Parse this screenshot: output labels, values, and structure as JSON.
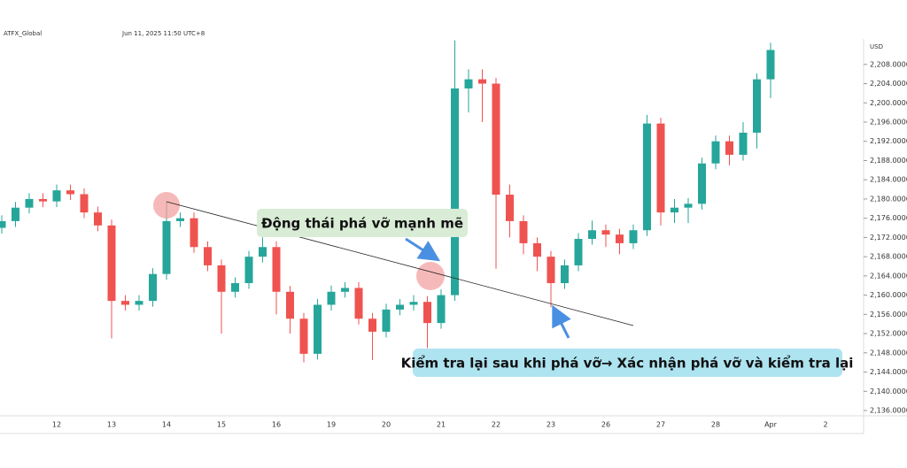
{
  "header": {
    "symbol": "ATFX_Global",
    "timestamp": "Jun 11, 2025 11:50 UTC+8",
    "currency": "USD"
  },
  "annotations": {
    "breakout": "Động thái phá vỡ mạnh mẽ",
    "retest": "Kiểm tra lại sau khi phá vỡ→ Xác nhận phá vỡ và kiểm tra lại"
  },
  "chart_data": {
    "type": "candlestick",
    "categories": [
      null,
      null,
      null,
      null,
      "12",
      null,
      null,
      null,
      "13",
      null,
      null,
      null,
      "14",
      null,
      null,
      null,
      "15",
      null,
      null,
      null,
      "16",
      null,
      null,
      null,
      "19",
      null,
      null,
      null,
      "20",
      null,
      null,
      null,
      "21",
      null,
      null,
      null,
      "22",
      null,
      null,
      null,
      "23",
      null,
      null,
      null,
      "26",
      null,
      null,
      null,
      "27",
      null,
      null,
      null,
      "28",
      null,
      null,
      null,
      "Apr",
      null,
      null,
      null,
      "2"
    ],
    "open": [
      2174.0,
      2175.4,
      2178.2,
      2180.0,
      2179.5,
      2181.8,
      2181.0,
      2177.2,
      2174.5,
      2158.8,
      2158.0,
      2158.8,
      2164.4,
      2175.4,
      2176.0,
      2170.0,
      2166.2,
      2160.7,
      2162.5,
      2168.0,
      2170.0,
      2160.7,
      2155.1,
      2147.8,
      2158.0,
      2160.7,
      2161.5,
      2155.1,
      2152.4,
      2157.0,
      2158.0,
      2158.6,
      2154.2,
      2160.0,
      2203.0,
      2204.9,
      2204.0,
      2180.9,
      2175.4,
      2170.8,
      2168.0,
      2162.5,
      2166.2,
      2171.7,
      2173.5,
      2172.6,
      2170.8,
      2173.5,
      2195.7,
      2177.2,
      2178.2,
      2179.0,
      2187.4,
      2192.0,
      2189.2,
      2193.8,
      2204.9,
      null,
      null,
      null,
      null
    ],
    "high": [
      2176.6,
      2179.4,
      2181.2,
      2181.2,
      2183.0,
      2183.0,
      2182.2,
      2178.4,
      2175.7,
      2160.0,
      2160.0,
      2165.6,
      2179.5,
      2177.2,
      2177.2,
      2171.2,
      2167.4,
      2163.7,
      2169.2,
      2172.0,
      2171.2,
      2161.9,
      2156.3,
      2159.2,
      2162.0,
      2162.7,
      2162.7,
      2156.3,
      2158.2,
      2159.2,
      2160.0,
      2159.8,
      2161.2,
      2213.0,
      2207.0,
      2207.0,
      2205.2,
      2183.0,
      2176.6,
      2172.0,
      2169.2,
      2167.4,
      2172.9,
      2175.5,
      2174.7,
      2173.8,
      2174.7,
      2197.5,
      2196.9,
      2180.0,
      2180.2,
      2188.6,
      2193.2,
      2193.2,
      2196.0,
      2206.1,
      2212.5,
      null,
      null,
      null,
      null
    ],
    "low": [
      2172.8,
      2174.2,
      2177.0,
      2178.3,
      2178.3,
      2179.8,
      2176.0,
      2173.3,
      2151.0,
      2156.8,
      2156.8,
      2157.6,
      2163.2,
      2174.2,
      2168.8,
      2165.0,
      2152.0,
      2159.5,
      2161.3,
      2166.8,
      2156.0,
      2152.0,
      2146.0,
      2146.6,
      2156.8,
      2159.5,
      2153.9,
      2146.5,
      2151.2,
      2155.8,
      2156.8,
      2149.0,
      2153.0,
      2158.8,
      2198.0,
      2196.0,
      2165.5,
      2172.0,
      2168.5,
      2165.0,
      2157.5,
      2161.3,
      2165.0,
      2170.5,
      2170.0,
      2168.5,
      2169.6,
      2172.3,
      2174.5,
      2175.0,
      2175.0,
      2177.8,
      2186.2,
      2187.0,
      2188.0,
      2190.5,
      2201.0,
      null,
      null,
      null,
      null
    ],
    "close": [
      2175.4,
      2178.2,
      2180.0,
      2179.5,
      2181.8,
      2181.0,
      2177.2,
      2174.5,
      2158.8,
      2158.0,
      2158.8,
      2164.4,
      2175.4,
      2176.0,
      2170.0,
      2166.2,
      2160.7,
      2162.5,
      2168.0,
      2170.0,
      2160.7,
      2155.1,
      2147.8,
      2158.0,
      2160.7,
      2161.5,
      2155.1,
      2152.4,
      2157.0,
      2158.0,
      2158.6,
      2154.2,
      2160.0,
      2203.0,
      2204.9,
      2204.0,
      2180.9,
      2175.4,
      2170.8,
      2168.0,
      2162.5,
      2166.2,
      2171.7,
      2173.5,
      2172.6,
      2170.8,
      2173.5,
      2195.7,
      2177.2,
      2178.2,
      2179.0,
      2187.4,
      2192.0,
      2189.2,
      2193.8,
      2204.9,
      2211.0,
      null,
      null,
      null,
      null
    ],
    "up_color": "#26a69a",
    "down_color": "#ef5350",
    "ylim": [
      2134.9,
      2213.3
    ],
    "yticks": [
      {
        "value": 2136,
        "label": "2,136.0000"
      },
      {
        "value": 2140,
        "label": "2,140.0000"
      },
      {
        "value": 2144,
        "label": "2,144.0000"
      },
      {
        "value": 2148,
        "label": "2,148.0000"
      },
      {
        "value": 2152,
        "label": "2,152.0000"
      },
      {
        "value": 2156,
        "label": "2,156.0000"
      },
      {
        "value": 2160,
        "label": "2,160.0000"
      },
      {
        "value": 2164,
        "label": "2,164.0000"
      },
      {
        "value": 2168,
        "label": "2,168.0000"
      },
      {
        "value": 2172,
        "label": "2,172.0000"
      },
      {
        "value": 2176,
        "label": "2,176.0000"
      },
      {
        "value": 2180,
        "label": "2,180.0000"
      },
      {
        "value": 2184,
        "label": "2,184.0000"
      },
      {
        "value": 2188,
        "label": "2,188.0000"
      },
      {
        "value": 2192,
        "label": "2,192.0000"
      },
      {
        "value": 2196,
        "label": "2,196.0000"
      },
      {
        "value": 2200,
        "label": "2,200.0000"
      },
      {
        "value": 2204,
        "label": "2,204.0000"
      },
      {
        "value": 2208,
        "label": "2,208.0000"
      }
    ]
  }
}
